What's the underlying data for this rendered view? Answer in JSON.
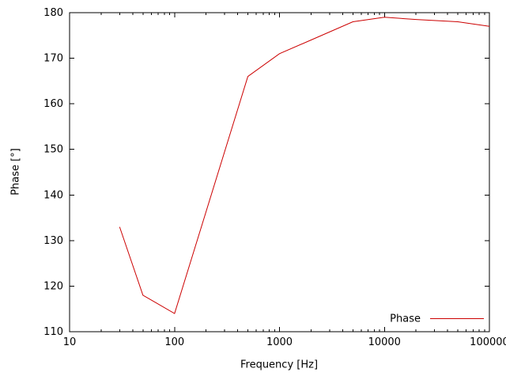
{
  "colors": {
    "background": "#ffffff",
    "axis": "#000000",
    "line": "#cc0000"
  },
  "chart_data": {
    "type": "line",
    "title": "",
    "xlabel": "Frequency [Hz]",
    "ylabel": "Phase [°]",
    "x_scale": "log",
    "xlim": [
      10,
      100000
    ],
    "ylim": [
      110,
      180
    ],
    "xticks": [
      10,
      100,
      1000,
      10000,
      100000
    ],
    "xtick_labels": [
      "10",
      "100",
      "1000",
      "10000",
      "100000"
    ],
    "yticks": [
      110,
      120,
      130,
      140,
      150,
      160,
      170,
      180
    ],
    "ytick_labels": [
      "110",
      "120",
      "130",
      "140",
      "150",
      "160",
      "170",
      "180"
    ],
    "grid": false,
    "legend_position": "bottom-right",
    "series": [
      {
        "name": "Phase",
        "color": "#cc0000",
        "x": [
          30,
          50,
          100,
          500,
          1000,
          2000,
          5000,
          10000,
          20000,
          50000,
          100000
        ],
        "y": [
          133,
          118,
          114,
          166,
          171,
          174,
          178,
          179,
          178.5,
          178,
          177
        ]
      }
    ]
  }
}
